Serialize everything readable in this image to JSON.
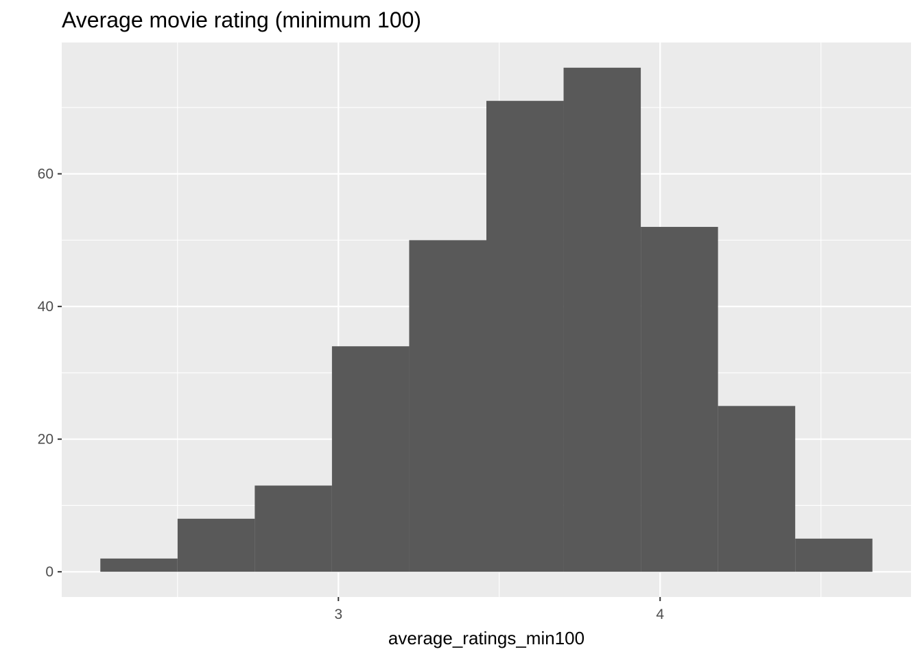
{
  "chart_data": {
    "type": "bar",
    "title": "Average movie rating (minimum 100)",
    "xlabel": "average_ratings_min100",
    "ylabel": "",
    "bins": [
      {
        "x0": 2.26,
        "x1": 2.5,
        "count": 2
      },
      {
        "x0": 2.5,
        "x1": 2.74,
        "count": 8
      },
      {
        "x0": 2.74,
        "x1": 2.98,
        "count": 13
      },
      {
        "x0": 2.98,
        "x1": 3.22,
        "count": 34
      },
      {
        "x0": 3.22,
        "x1": 3.46,
        "count": 50
      },
      {
        "x0": 3.46,
        "x1": 3.7,
        "count": 71
      },
      {
        "x0": 3.7,
        "x1": 3.94,
        "count": 76
      },
      {
        "x0": 3.94,
        "x1": 4.18,
        "count": 52
      },
      {
        "x0": 4.18,
        "x1": 4.42,
        "count": 25
      },
      {
        "x0": 4.42,
        "x1": 4.66,
        "count": 5
      }
    ],
    "xlim": [
      2.14,
      4.78
    ],
    "ylim": [
      -3.8,
      79.8
    ],
    "x_major_ticks": [
      3,
      4
    ],
    "x_minor_gridlines": [
      2.5,
      3.5,
      4.5
    ],
    "y_major_ticks": [
      0,
      20,
      40,
      60
    ],
    "y_minor_gridlines": [
      10,
      30,
      50,
      70
    ],
    "grid": true,
    "legend": "none",
    "colors": {
      "bar_fill": "#595959",
      "panel_background": "#ebebeb",
      "grid_line": "#ffffff",
      "tick_text": "#4d4d4d",
      "tick_mark": "#333333",
      "title_text": "#000000"
    }
  }
}
